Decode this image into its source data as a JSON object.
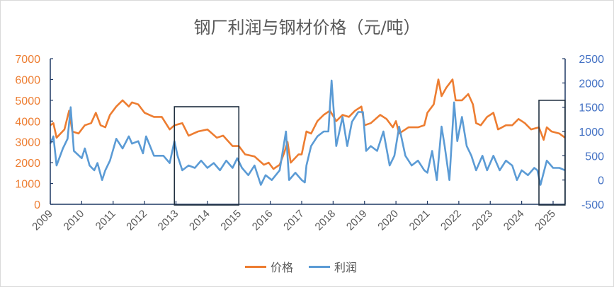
{
  "chart_data": {
    "type": "line",
    "title": "钢厂利润与钢材价格（元/吨）",
    "xlabel": "",
    "ylabel_left": "",
    "ylabel_right": "",
    "x_ticks": [
      "2009",
      "2010",
      "2011",
      "2012",
      "2013",
      "2014",
      "2015",
      "2016",
      "2017",
      "2018",
      "2019",
      "2020",
      "2021",
      "2022",
      "2023",
      "2024",
      "2025"
    ],
    "xlim": [
      2009,
      2025.38
    ],
    "y_left": {
      "lim": [
        0,
        7000
      ],
      "ticks": [
        "0",
        "1000",
        "2000",
        "3000",
        "4000",
        "5000",
        "6000",
        "7000"
      ],
      "color": "#ED7D31"
    },
    "y_right": {
      "lim": [
        -500,
        2500
      ],
      "ticks": [
        "-500",
        "0",
        "500",
        "1000",
        "1500",
        "2000",
        "2500"
      ],
      "color": "#4472C4"
    },
    "grid": false,
    "legend_position": "bottom",
    "highlight_boxes": [
      {
        "x": [
          2012.95,
          2015.0
        ],
        "y_left": [
          0,
          4690
        ]
      },
      {
        "x": [
          2024.55,
          2025.38
        ],
        "y_left": [
          0,
          5000
        ]
      }
    ],
    "series": [
      {
        "name": "价格",
        "axis": "left",
        "color": "#ED7D31",
        "points": [
          [
            2009.0,
            3800
          ],
          [
            2009.1,
            3900
          ],
          [
            2009.2,
            3200
          ],
          [
            2009.45,
            3600
          ],
          [
            2009.6,
            4500
          ],
          [
            2009.7,
            3500
          ],
          [
            2009.9,
            3400
          ],
          [
            2010.1,
            3800
          ],
          [
            2010.3,
            3900
          ],
          [
            2010.45,
            4400
          ],
          [
            2010.6,
            3800
          ],
          [
            2010.75,
            3700
          ],
          [
            2010.9,
            4300
          ],
          [
            2011.1,
            4700
          ],
          [
            2011.3,
            5000
          ],
          [
            2011.5,
            4700
          ],
          [
            2011.6,
            4900
          ],
          [
            2011.8,
            4800
          ],
          [
            2012.0,
            4400
          ],
          [
            2012.3,
            4200
          ],
          [
            2012.55,
            4200
          ],
          [
            2012.8,
            3600
          ],
          [
            2012.95,
            3800
          ],
          [
            2013.2,
            3900
          ],
          [
            2013.4,
            3300
          ],
          [
            2013.7,
            3500
          ],
          [
            2014.0,
            3600
          ],
          [
            2014.3,
            3200
          ],
          [
            2014.5,
            3300
          ],
          [
            2014.8,
            2800
          ],
          [
            2015.0,
            2800
          ],
          [
            2015.2,
            2400
          ],
          [
            2015.5,
            2300
          ],
          [
            2015.8,
            1900
          ],
          [
            2015.95,
            2000
          ],
          [
            2016.1,
            1700
          ],
          [
            2016.3,
            1900
          ],
          [
            2016.45,
            2500
          ],
          [
            2016.55,
            3000
          ],
          [
            2016.65,
            2000
          ],
          [
            2016.9,
            2400
          ],
          [
            2017.0,
            2400
          ],
          [
            2017.15,
            3500
          ],
          [
            2017.3,
            3400
          ],
          [
            2017.5,
            4000
          ],
          [
            2017.7,
            4300
          ],
          [
            2017.9,
            4500
          ],
          [
            2018.1,
            4000
          ],
          [
            2018.3,
            4300
          ],
          [
            2018.5,
            4200
          ],
          [
            2018.7,
            4500
          ],
          [
            2018.9,
            4700
          ],
          [
            2019.0,
            3800
          ],
          [
            2019.2,
            3900
          ],
          [
            2019.5,
            4300
          ],
          [
            2019.7,
            4100
          ],
          [
            2019.9,
            3700
          ],
          [
            2020.0,
            4000
          ],
          [
            2020.1,
            3400
          ],
          [
            2020.4,
            3700
          ],
          [
            2020.7,
            3700
          ],
          [
            2020.9,
            3800
          ],
          [
            2021.0,
            4400
          ],
          [
            2021.2,
            4800
          ],
          [
            2021.35,
            6000
          ],
          [
            2021.45,
            5200
          ],
          [
            2021.6,
            5600
          ],
          [
            2021.8,
            6000
          ],
          [
            2021.9,
            5000
          ],
          [
            2022.1,
            5000
          ],
          [
            2022.3,
            5300
          ],
          [
            2022.45,
            4800
          ],
          [
            2022.55,
            3900
          ],
          [
            2022.7,
            3800
          ],
          [
            2022.9,
            4200
          ],
          [
            2023.1,
            4400
          ],
          [
            2023.25,
            3600
          ],
          [
            2023.5,
            3800
          ],
          [
            2023.7,
            3800
          ],
          [
            2023.9,
            4100
          ],
          [
            2024.1,
            3900
          ],
          [
            2024.3,
            3600
          ],
          [
            2024.55,
            3700
          ],
          [
            2024.7,
            3100
          ],
          [
            2024.8,
            3700
          ],
          [
            2024.95,
            3500
          ],
          [
            2025.2,
            3400
          ],
          [
            2025.38,
            3200
          ]
        ]
      },
      {
        "name": "利润",
        "axis": "right",
        "color": "#5B9BD5",
        "points": [
          [
            2009.0,
            750
          ],
          [
            2009.1,
            900
          ],
          [
            2009.2,
            300
          ],
          [
            2009.4,
            650
          ],
          [
            2009.55,
            850
          ],
          [
            2009.65,
            1500
          ],
          [
            2009.75,
            600
          ],
          [
            2010.0,
            450
          ],
          [
            2010.1,
            650
          ],
          [
            2010.25,
            300
          ],
          [
            2010.4,
            200
          ],
          [
            2010.5,
            350
          ],
          [
            2010.65,
            0
          ],
          [
            2010.75,
            200
          ],
          [
            2010.9,
            400
          ],
          [
            2011.1,
            850
          ],
          [
            2011.3,
            650
          ],
          [
            2011.5,
            900
          ],
          [
            2011.6,
            750
          ],
          [
            2011.8,
            800
          ],
          [
            2011.95,
            550
          ],
          [
            2012.05,
            900
          ],
          [
            2012.3,
            500
          ],
          [
            2012.6,
            500
          ],
          [
            2012.8,
            350
          ],
          [
            2012.95,
            800
          ],
          [
            2013.05,
            500
          ],
          [
            2013.2,
            200
          ],
          [
            2013.4,
            300
          ],
          [
            2013.6,
            250
          ],
          [
            2013.8,
            400
          ],
          [
            2014.0,
            250
          ],
          [
            2014.2,
            350
          ],
          [
            2014.4,
            200
          ],
          [
            2014.6,
            400
          ],
          [
            2014.8,
            250
          ],
          [
            2014.95,
            450
          ],
          [
            2015.1,
            250
          ],
          [
            2015.3,
            100
          ],
          [
            2015.5,
            300
          ],
          [
            2015.7,
            -100
          ],
          [
            2015.85,
            100
          ],
          [
            2016.05,
            0
          ],
          [
            2016.3,
            200
          ],
          [
            2016.5,
            1000
          ],
          [
            2016.6,
            0
          ],
          [
            2016.8,
            150
          ],
          [
            2017.0,
            0
          ],
          [
            2017.1,
            -50
          ],
          [
            2017.15,
            300
          ],
          [
            2017.3,
            700
          ],
          [
            2017.5,
            900
          ],
          [
            2017.7,
            1000
          ],
          [
            2017.85,
            1000
          ],
          [
            2017.95,
            2050
          ],
          [
            2018.1,
            700
          ],
          [
            2018.3,
            1300
          ],
          [
            2018.45,
            700
          ],
          [
            2018.6,
            1200
          ],
          [
            2018.8,
            1400
          ],
          [
            2018.95,
            1400
          ],
          [
            2019.05,
            600
          ],
          [
            2019.2,
            700
          ],
          [
            2019.4,
            600
          ],
          [
            2019.6,
            1000
          ],
          [
            2019.8,
            300
          ],
          [
            2019.95,
            500
          ],
          [
            2020.1,
            1100
          ],
          [
            2020.3,
            500
          ],
          [
            2020.5,
            300
          ],
          [
            2020.7,
            400
          ],
          [
            2020.9,
            200
          ],
          [
            2021.0,
            150
          ],
          [
            2021.15,
            600
          ],
          [
            2021.3,
            0
          ],
          [
            2021.45,
            1100
          ],
          [
            2021.55,
            700
          ],
          [
            2021.7,
            0
          ],
          [
            2021.85,
            1600
          ],
          [
            2021.95,
            800
          ],
          [
            2022.1,
            1300
          ],
          [
            2022.25,
            700
          ],
          [
            2022.4,
            500
          ],
          [
            2022.55,
            200
          ],
          [
            2022.75,
            500
          ],
          [
            2022.9,
            200
          ],
          [
            2023.1,
            500
          ],
          [
            2023.3,
            200
          ],
          [
            2023.5,
            400
          ],
          [
            2023.7,
            300
          ],
          [
            2023.85,
            0
          ],
          [
            2024.0,
            200
          ],
          [
            2024.2,
            100
          ],
          [
            2024.4,
            250
          ],
          [
            2024.5,
            200
          ],
          [
            2024.6,
            -100
          ],
          [
            2024.8,
            400
          ],
          [
            2025.0,
            250
          ],
          [
            2025.2,
            250
          ],
          [
            2025.38,
            200
          ]
        ]
      }
    ]
  }
}
